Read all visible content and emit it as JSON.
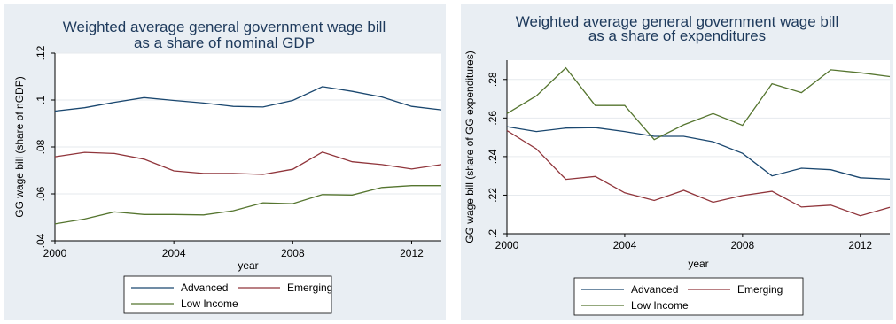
{
  "chart_data": [
    {
      "type": "line",
      "title": "Weighted average general government wage bill\nas a share of nominal GDP",
      "xlabel": "year",
      "ylabel": "GG wage bill (share of nGDP)",
      "x": [
        2000,
        2001,
        2002,
        2003,
        2004,
        2005,
        2006,
        2007,
        2008,
        2009,
        2010,
        2011,
        2012,
        2013
      ],
      "xlim": [
        2000,
        2013
      ],
      "ylim": [
        0.04,
        0.12
      ],
      "xticks": [
        2000,
        2004,
        2008,
        2012
      ],
      "xtick_labels": [
        "2000",
        "2004",
        "2008",
        "2012"
      ],
      "yticks": [
        0.04,
        0.06,
        0.08,
        0.1,
        0.12
      ],
      "ytick_labels": [
        ".04",
        ".06",
        ".08",
        ".1",
        ".12"
      ],
      "grid": true,
      "legend_position": "bottom",
      "series": [
        {
          "name": "Advanced",
          "color": "#1a476f",
          "values": [
            0.0953,
            0.0967,
            0.099,
            0.101,
            0.0998,
            0.0987,
            0.0973,
            0.097,
            0.0998,
            0.1057,
            0.1037,
            0.1013,
            0.0973,
            0.0958
          ]
        },
        {
          "name": "Emerging",
          "color": "#90353b",
          "values": [
            0.0758,
            0.0777,
            0.0772,
            0.0748,
            0.0698,
            0.0687,
            0.0687,
            0.0683,
            0.0705,
            0.0778,
            0.0737,
            0.0725,
            0.0706,
            0.0725
          ]
        },
        {
          "name": "Low Income",
          "color": "#55752f",
          "values": [
            0.0472,
            0.0493,
            0.0523,
            0.0512,
            0.0512,
            0.051,
            0.0528,
            0.0562,
            0.0558,
            0.0597,
            0.0595,
            0.0627,
            0.0635,
            0.0635
          ]
        }
      ]
    },
    {
      "type": "line",
      "title": "Weighted average general government wage bill\nas a share of expenditures",
      "xlabel": "year",
      "ylabel": "GG wage bill (share of GG expenditures)",
      "x": [
        2000,
        2001,
        2002,
        2003,
        2004,
        2005,
        2006,
        2007,
        2008,
        2009,
        2010,
        2011,
        2012,
        2013
      ],
      "xlim": [
        2000,
        2013
      ],
      "ylim": [
        0.2,
        0.29
      ],
      "xticks": [
        2000,
        2004,
        2008,
        2012
      ],
      "xtick_labels": [
        "2000",
        "2004",
        "2008",
        "2012"
      ],
      "yticks": [
        0.2,
        0.22,
        0.24,
        0.26,
        0.28
      ],
      "ytick_labels": [
        ".2",
        ".22",
        ".24",
        ".26",
        ".28"
      ],
      "grid": true,
      "legend_position": "bottom",
      "series": [
        {
          "name": "Advanced",
          "color": "#1a476f",
          "values": [
            0.2555,
            0.253,
            0.2548,
            0.255,
            0.253,
            0.2505,
            0.2505,
            0.2477,
            0.2417,
            0.23,
            0.234,
            0.2332,
            0.229,
            0.2283
          ]
        },
        {
          "name": "Emerging",
          "color": "#90353b",
          "values": [
            0.2535,
            0.244,
            0.2282,
            0.2297,
            0.2212,
            0.2172,
            0.2225,
            0.2163,
            0.2198,
            0.222,
            0.2138,
            0.2148,
            0.2093,
            0.2137
          ]
        },
        {
          "name": "Low Income",
          "color": "#55752f",
          "values": [
            0.2623,
            0.2715,
            0.286,
            0.2665,
            0.2665,
            0.2488,
            0.2565,
            0.2623,
            0.2562,
            0.2778,
            0.2732,
            0.285,
            0.2835,
            0.2815
          ]
        }
      ]
    }
  ]
}
